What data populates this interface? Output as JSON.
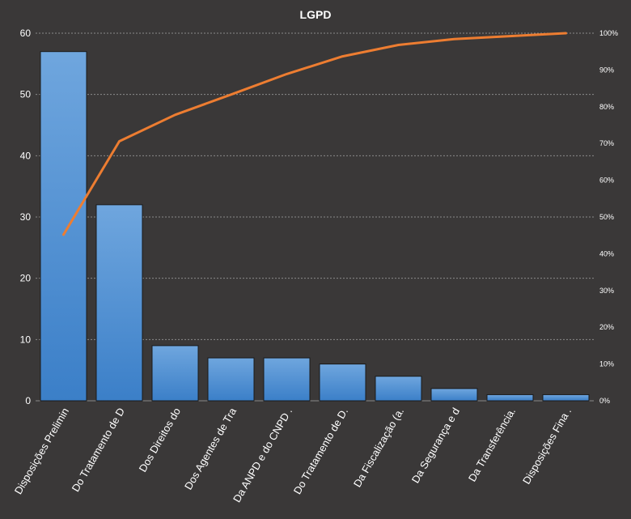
{
  "chart_data": {
    "type": "bar",
    "title": "LGPD",
    "categories": [
      "Disposições Prelimin",
      "Do Tratamento de D",
      "Dos Direitos do",
      "Dos Agentes de Tra",
      "Da ANPD e do CNPD .",
      "Do Tratamento de D.",
      "Da Fiscalização (a.",
      "Da Segurança e d",
      "Da Transferência.",
      "Disposições Fina ."
    ],
    "series": [
      {
        "type": "bar",
        "values": [
          57,
          32,
          9,
          7,
          7,
          6,
          4,
          2,
          1,
          1
        ]
      },
      {
        "type": "line",
        "axis": "secondary",
        "values": [
          45.2,
          70.6,
          77.8,
          83.3,
          88.9,
          93.7,
          96.8,
          98.4,
          99.2,
          100
        ]
      }
    ],
    "y_left": {
      "min": 0,
      "max": 60,
      "ticks": [
        "0",
        "10",
        "20",
        "30",
        "40",
        "50",
        "60"
      ]
    },
    "y_right": {
      "min": 0,
      "max": 100,
      "ticks": [
        "0%",
        "10%",
        "20%",
        "30%",
        "40%",
        "50%",
        "60%",
        "70%",
        "80%",
        "90%",
        "100%"
      ]
    },
    "grid": true,
    "legend": "none",
    "colors": {
      "background": "#3a3838",
      "bar_top": "#6fa6de",
      "bar_bottom": "#3b7fc8",
      "bar_stroke": "#1a1a1a",
      "line": "#ed7d31",
      "text": "#ffffff",
      "grid": "#8a8a8a"
    }
  }
}
